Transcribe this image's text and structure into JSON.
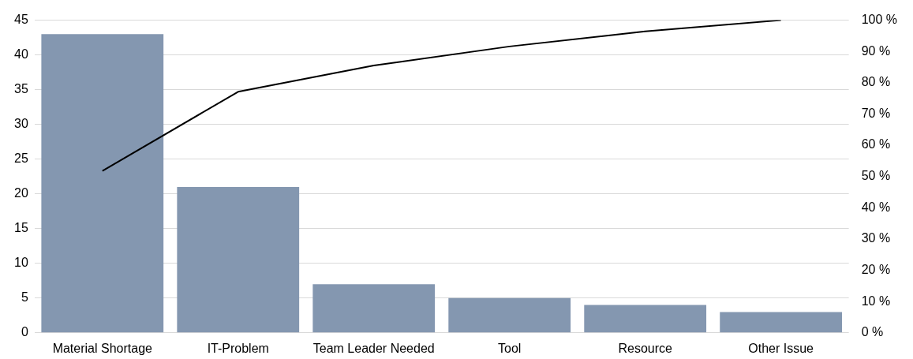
{
  "chart_data": {
    "type": "bar",
    "categories": [
      "Material Shortage",
      "IT-Problem",
      "Team Leader Needed",
      "Tool",
      "Resource",
      "Other Issue"
    ],
    "series": [
      {
        "color": "#8497b0",
        "values": [
          43,
          21,
          7,
          5,
          4,
          3
        ]
      },
      {
        "type": "line",
        "color": "#000000",
        "axis": "y2",
        "values": [
          51.8,
          77.1,
          85.5,
          91.6,
          96.4,
          100
        ]
      }
    ],
    "ylim": [
      0,
      45
    ],
    "yticks": [
      0,
      5,
      10,
      15,
      20,
      25,
      30,
      35,
      40,
      45
    ],
    "y2lim": [
      0,
      100
    ],
    "y2ticks": [
      {
        "value": 0,
        "label": "0 %"
      },
      {
        "value": 10,
        "label": "10 %"
      },
      {
        "value": 20,
        "label": "20 %"
      },
      {
        "value": 30,
        "label": "30 %"
      },
      {
        "value": 40,
        "label": "40 %"
      },
      {
        "value": 50,
        "label": "50 %"
      },
      {
        "value": 60,
        "label": "60 %"
      },
      {
        "value": 70,
        "label": "70 %"
      },
      {
        "value": 80,
        "label": "80 %"
      },
      {
        "value": 90,
        "label": "90 %"
      },
      {
        "value": 100,
        "label": "100 %"
      }
    ],
    "grid": "y",
    "legend": false
  }
}
